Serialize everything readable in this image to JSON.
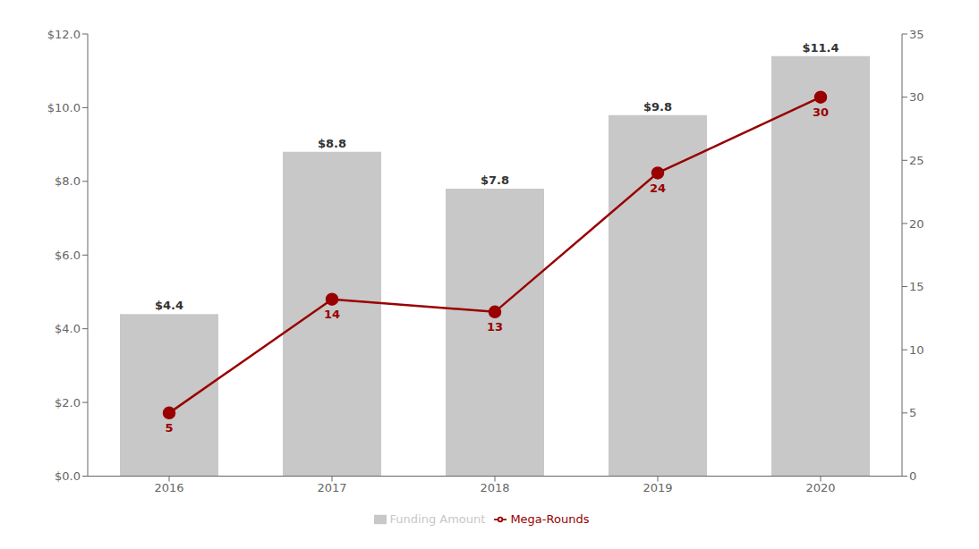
{
  "chart_data": {
    "type": "bar",
    "categories": [
      "2016",
      "2017",
      "2018",
      "2019",
      "2020"
    ],
    "series": [
      {
        "name": "Funding Amount",
        "type": "bar",
        "color": "#c8c8c8",
        "values": [
          4.4,
          8.8,
          7.8,
          9.8,
          11.4
        ],
        "value_labels": [
          "$4.4",
          "$8.8",
          "$7.8",
          "$9.8",
          "$11.4"
        ],
        "data_labels": true
      },
      {
        "name": "Mega-Rounds",
        "type": "line",
        "color": "#990000",
        "marker": "circle",
        "axis": "y2",
        "values": [
          5,
          14,
          13,
          24,
          30
        ],
        "data_labels": true
      }
    ],
    "ylim": [
      0,
      12.0
    ],
    "yticks": [
      {
        "value": 0.0,
        "label": "$0.0"
      },
      {
        "value": 2.0,
        "label": "$2.0"
      },
      {
        "value": 4.0,
        "label": "$4.0"
      },
      {
        "value": 6.0,
        "label": "$6.0"
      },
      {
        "value": 8.0,
        "label": "$8.0"
      },
      {
        "value": 10.0,
        "label": "$10.0"
      },
      {
        "value": 12.0,
        "label": "$12.0"
      }
    ],
    "y2lim": [
      0,
      35
    ],
    "y2ticks": [
      0,
      5,
      10,
      15,
      20,
      25,
      30,
      35
    ],
    "grid": false,
    "legend": "bottom"
  }
}
